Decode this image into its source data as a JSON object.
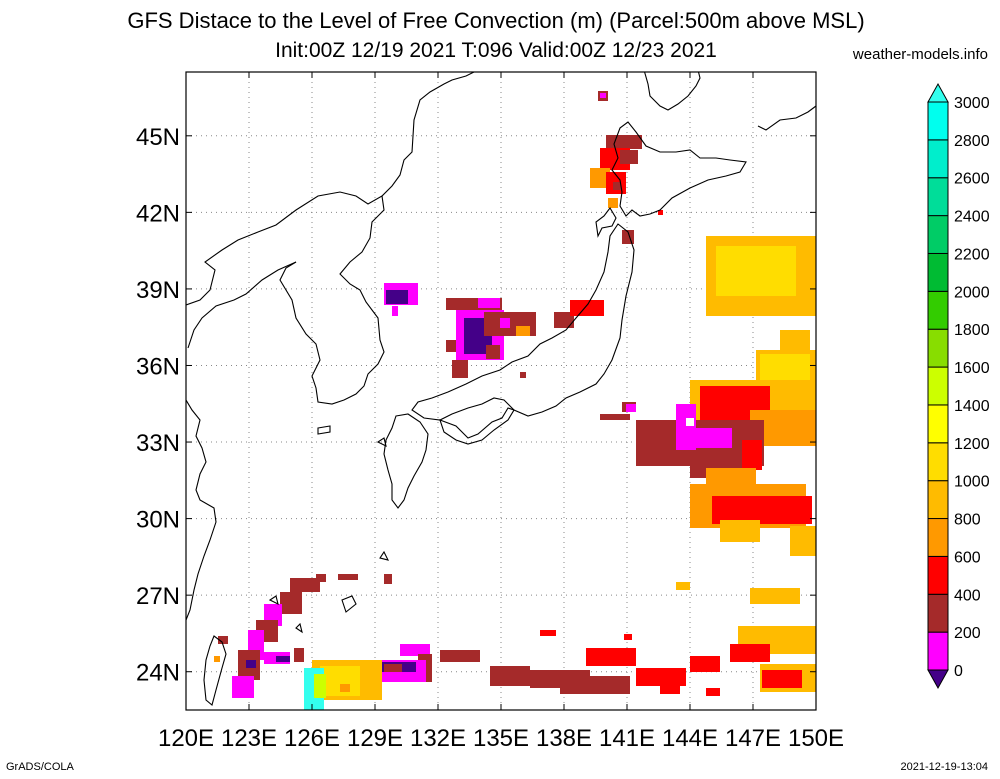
{
  "title": "GFS Distace to the Level of Free Convection (m) (Parcel:500m above MSL)",
  "subtitle": "Init:00Z 12/19 2021 T:096 Valid:00Z 12/23 2021",
  "site": "weather-models.info",
  "footer_left": "GrADS/COLA",
  "footer_right": "2021-12-19-13:04",
  "map": {
    "lon_range": [
      120,
      150
    ],
    "lat_range": [
      22.5,
      47.5
    ],
    "lon_ticks": [
      "120E",
      "123E",
      "126E",
      "129E",
      "132E",
      "135E",
      "138E",
      "141E",
      "144E",
      "147E",
      "150E"
    ],
    "lat_ticks": [
      "24N",
      "27N",
      "30N",
      "33N",
      "36N",
      "39N",
      "42N",
      "45N"
    ],
    "grid": true
  },
  "colorbar": {
    "labels": [
      "0",
      "200",
      "400",
      "600",
      "800",
      "1000",
      "1200",
      "1400",
      "1600",
      "1800",
      "2000",
      "2200",
      "2400",
      "2600",
      "2800",
      "3000"
    ],
    "colors": [
      "#440088",
      "#ff00ff",
      "#a52a2a",
      "#ff0000",
      "#ff9900",
      "#ffbb00",
      "#ffdd00",
      "#ffff00",
      "#ccff00",
      "#88dd00",
      "#33cc00",
      "#00bb33",
      "#00cc66",
      "#00dd99",
      "#00eecc",
      "#00ffee"
    ],
    "min_color": "#440088",
    "max_color": "#33ffee"
  }
}
